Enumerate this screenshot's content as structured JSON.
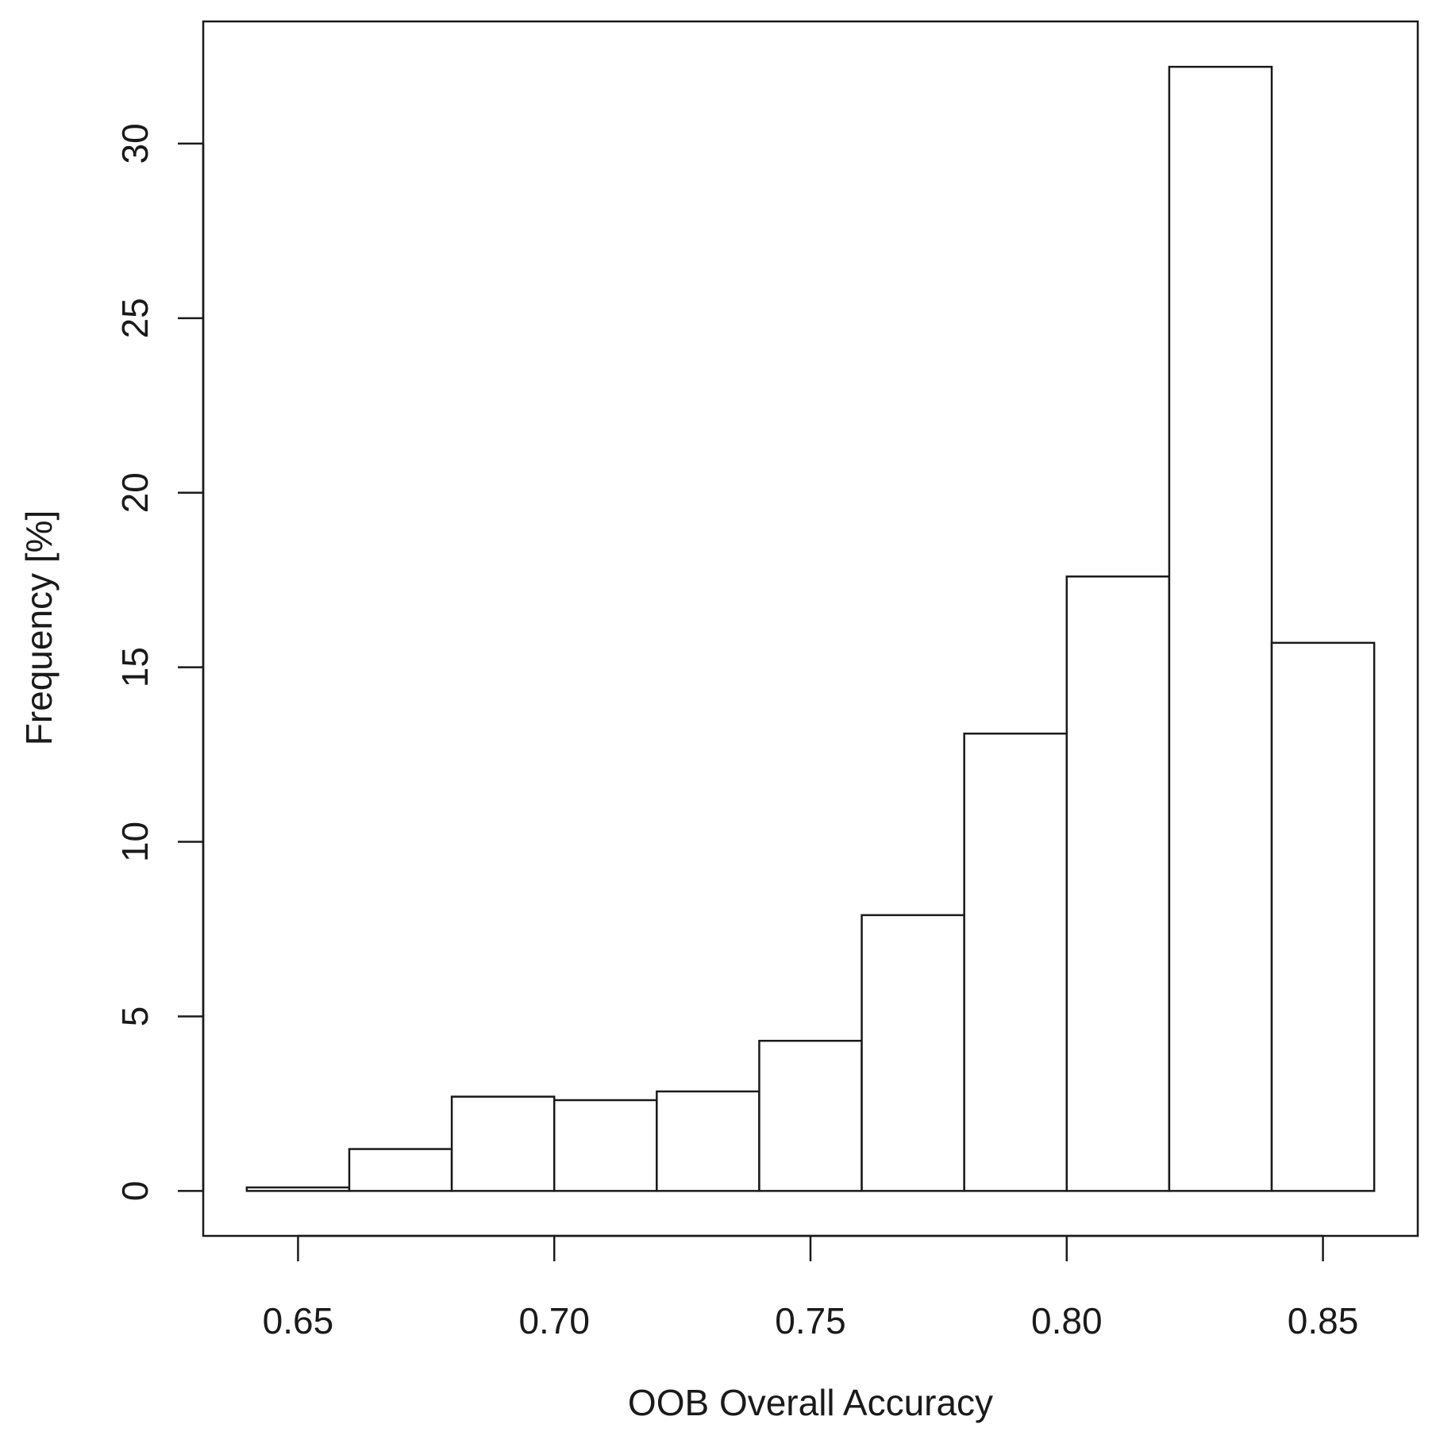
{
  "chart_data": {
    "type": "bar",
    "histogram": true,
    "title": "",
    "xlabel": "OOB Overall Accuracy",
    "ylabel": "Frequency [%]",
    "bins": [
      {
        "x0": 0.64,
        "x1": 0.66,
        "value": 0.1
      },
      {
        "x0": 0.66,
        "x1": 0.68,
        "value": 1.2
      },
      {
        "x0": 0.68,
        "x1": 0.7,
        "value": 2.7
      },
      {
        "x0": 0.7,
        "x1": 0.72,
        "value": 2.6
      },
      {
        "x0": 0.72,
        "x1": 0.74,
        "value": 2.85
      },
      {
        "x0": 0.74,
        "x1": 0.76,
        "value": 4.3
      },
      {
        "x0": 0.76,
        "x1": 0.78,
        "value": 7.9
      },
      {
        "x0": 0.78,
        "x1": 0.8,
        "value": 13.1
      },
      {
        "x0": 0.8,
        "x1": 0.82,
        "value": 17.6
      },
      {
        "x0": 0.82,
        "x1": 0.84,
        "value": 32.2
      },
      {
        "x0": 0.84,
        "x1": 0.86,
        "value": 15.7
      }
    ],
    "xlim": [
      0.6315,
      0.8685
    ],
    "ylim": [
      -1.288,
      33.5
    ],
    "xticks": [
      {
        "value": 0.65,
        "label": "0.65"
      },
      {
        "value": 0.7,
        "label": "0.70"
      },
      {
        "value": 0.75,
        "label": "0.75"
      },
      {
        "value": 0.8,
        "label": "0.80"
      },
      {
        "value": 0.85,
        "label": "0.85"
      }
    ],
    "yticks": [
      {
        "value": 0,
        "label": "0"
      },
      {
        "value": 5,
        "label": "5"
      },
      {
        "value": 10,
        "label": "10"
      },
      {
        "value": 15,
        "label": "15"
      },
      {
        "value": 20,
        "label": "20"
      },
      {
        "value": 25,
        "label": "25"
      },
      {
        "value": 30,
        "label": "30"
      }
    ],
    "grid": false,
    "legend": "none",
    "colors": {
      "bar_fill": "#ffffff",
      "bar_stroke": "#1a1a1a",
      "axis": "#1a1a1a"
    }
  }
}
